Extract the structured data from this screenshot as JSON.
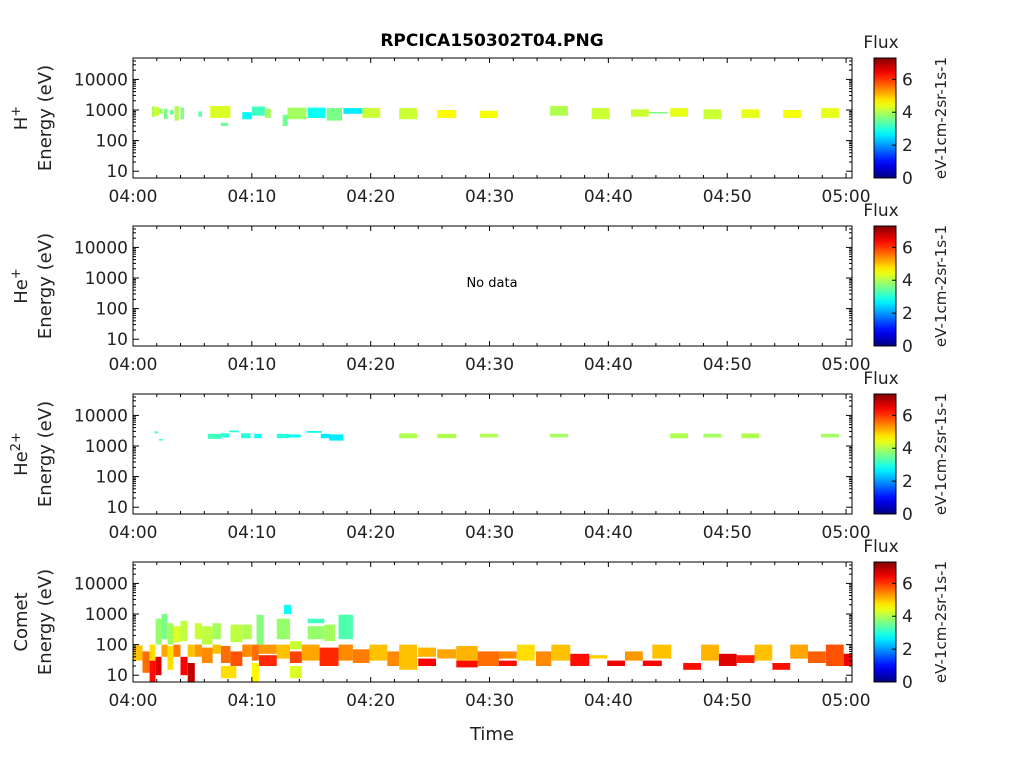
{
  "chart_data": {
    "type": "heatmap",
    "title": "RPCICA150302T04.PNG",
    "xlabel": "Time",
    "x_ticks": [
      "04:00",
      "04:10",
      "04:20",
      "04:30",
      "04:40",
      "04:50",
      "05:00"
    ],
    "x_range_minutes": [
      0,
      60.5
    ],
    "y_scale": "log",
    "y_ticks": [
      "10",
      "100",
      "1000",
      "10000"
    ],
    "y_range_eV": [
      6,
      50000
    ],
    "colorbar": {
      "label_top": "Flux",
      "label_side": "eV-1cm-2sr-1s-1",
      "ticks": [
        "0",
        "2",
        "4",
        "6"
      ],
      "range": [
        0,
        7.3
      ],
      "colormap": "jet"
    },
    "panels": [
      {
        "species": "H",
        "species_sup": "+",
        "ylabel": "Energy (eV)",
        "no_data": "",
        "cells": [
          {
            "t": 1.6,
            "dt": 0.25,
            "e1": 600,
            "e2": 1300,
            "v": 4.0
          },
          {
            "t": 1.9,
            "dt": 0.3,
            "e1": 650,
            "e2": 1250,
            "v": 4.2
          },
          {
            "t": 2.2,
            "dt": 0.3,
            "e1": 750,
            "e2": 1100,
            "v": 3.8
          },
          {
            "t": 2.6,
            "dt": 0.3,
            "e1": 500,
            "e2": 1100,
            "v": 3.6
          },
          {
            "t": 3.1,
            "dt": 0.3,
            "e1": 700,
            "e2": 1000,
            "v": 3.5
          },
          {
            "t": 3.5,
            "dt": 0.35,
            "e1": 450,
            "e2": 1350,
            "v": 4.0
          },
          {
            "t": 4.0,
            "dt": 0.3,
            "e1": 500,
            "e2": 1200,
            "v": 3.7
          },
          {
            "t": 5.5,
            "dt": 0.3,
            "e1": 600,
            "e2": 900,
            "v": 3.4
          },
          {
            "t": 6.5,
            "dt": 1.7,
            "e1": 550,
            "e2": 1350,
            "v": 4.3
          },
          {
            "t": 7.4,
            "dt": 0.6,
            "e1": 300,
            "e2": 380,
            "v": 3.5
          },
          {
            "t": 9.2,
            "dt": 0.8,
            "e1": 500,
            "e2": 850,
            "v": 2.7
          },
          {
            "t": 10.0,
            "dt": 1.1,
            "e1": 650,
            "e2": 1300,
            "v": 3.2
          },
          {
            "t": 11.1,
            "dt": 0.5,
            "e1": 550,
            "e2": 1100,
            "v": 3.9
          },
          {
            "t": 12.6,
            "dt": 0.4,
            "e1": 300,
            "e2": 700,
            "v": 3.5
          },
          {
            "t": 13.0,
            "dt": 1.6,
            "e1": 500,
            "e2": 1200,
            "v": 3.9
          },
          {
            "t": 14.7,
            "dt": 1.5,
            "e1": 550,
            "e2": 1200,
            "v": 2.8
          },
          {
            "t": 16.3,
            "dt": 1.3,
            "e1": 450,
            "e2": 1150,
            "v": 3.6
          },
          {
            "t": 17.7,
            "dt": 1.6,
            "e1": 750,
            "e2": 1150,
            "v": 2.6
          },
          {
            "t": 19.3,
            "dt": 1.5,
            "e1": 550,
            "e2": 1150,
            "v": 4.2
          },
          {
            "t": 22.4,
            "dt": 1.5,
            "e1": 500,
            "e2": 1150,
            "v": 4.2
          },
          {
            "t": 25.6,
            "dt": 1.6,
            "e1": 550,
            "e2": 1000,
            "v": 4.6
          },
          {
            "t": 29.2,
            "dt": 1.5,
            "e1": 550,
            "e2": 950,
            "v": 4.5
          },
          {
            "t": 35.1,
            "dt": 1.5,
            "e1": 650,
            "e2": 1350,
            "v": 4.0
          },
          {
            "t": 38.6,
            "dt": 1.5,
            "e1": 500,
            "e2": 1150,
            "v": 4.2
          },
          {
            "t": 41.9,
            "dt": 1.5,
            "e1": 600,
            "e2": 1050,
            "v": 4.2
          },
          {
            "t": 43.4,
            "dt": 1.6,
            "e1": 780,
            "e2": 860,
            "v": 3.6
          },
          {
            "t": 45.2,
            "dt": 1.5,
            "e1": 600,
            "e2": 1150,
            "v": 4.4
          },
          {
            "t": 48.0,
            "dt": 1.5,
            "e1": 500,
            "e2": 1050,
            "v": 4.2
          },
          {
            "t": 51.2,
            "dt": 1.5,
            "e1": 550,
            "e2": 1050,
            "v": 4.4
          },
          {
            "t": 54.7,
            "dt": 1.5,
            "e1": 550,
            "e2": 1000,
            "v": 4.5
          },
          {
            "t": 57.9,
            "dt": 1.5,
            "e1": 550,
            "e2": 1150,
            "v": 4.4
          }
        ]
      },
      {
        "species": "He",
        "species_sup": "+",
        "ylabel": "Energy (eV)",
        "no_data": "No data",
        "cells": []
      },
      {
        "species": "He",
        "species_sup": "2+",
        "ylabel": "Energy (eV)",
        "no_data": "",
        "cells": [
          {
            "t": 1.8,
            "dt": 0.3,
            "e1": 2600,
            "e2": 3000,
            "v": 3.2
          },
          {
            "t": 2.2,
            "dt": 0.3,
            "e1": 1500,
            "e2": 1700,
            "v": 3.2
          },
          {
            "t": 6.3,
            "dt": 1.1,
            "e1": 1700,
            "e2": 2500,
            "v": 3.2
          },
          {
            "t": 7.4,
            "dt": 0.7,
            "e1": 1900,
            "e2": 2600,
            "v": 3.0
          },
          {
            "t": 8.1,
            "dt": 0.8,
            "e1": 2800,
            "e2": 3200,
            "v": 3.0
          },
          {
            "t": 9.1,
            "dt": 0.8,
            "e1": 1800,
            "e2": 2600,
            "v": 3.0
          },
          {
            "t": 10.2,
            "dt": 0.6,
            "e1": 1800,
            "e2": 2500,
            "v": 2.8
          },
          {
            "t": 12.1,
            "dt": 1.0,
            "e1": 1800,
            "e2": 2500,
            "v": 3.0
          },
          {
            "t": 13.1,
            "dt": 1.0,
            "e1": 1900,
            "e2": 2400,
            "v": 2.8
          },
          {
            "t": 14.6,
            "dt": 1.3,
            "e1": 2700,
            "e2": 3100,
            "v": 2.8
          },
          {
            "t": 15.8,
            "dt": 0.8,
            "e1": 1800,
            "e2": 2500,
            "v": 2.6
          },
          {
            "t": 16.5,
            "dt": 1.2,
            "e1": 1500,
            "e2": 2400,
            "v": 2.6
          },
          {
            "t": 22.4,
            "dt": 1.5,
            "e1": 1800,
            "e2": 2600,
            "v": 4.0
          },
          {
            "t": 25.6,
            "dt": 1.6,
            "e1": 1800,
            "e2": 2500,
            "v": 4.0
          },
          {
            "t": 29.2,
            "dt": 1.5,
            "e1": 1900,
            "e2": 2500,
            "v": 4.0
          },
          {
            "t": 35.1,
            "dt": 1.5,
            "e1": 1900,
            "e2": 2500,
            "v": 3.9
          },
          {
            "t": 45.2,
            "dt": 1.5,
            "e1": 1800,
            "e2": 2600,
            "v": 4.0
          },
          {
            "t": 48.0,
            "dt": 1.5,
            "e1": 1900,
            "e2": 2500,
            "v": 3.9
          },
          {
            "t": 51.2,
            "dt": 1.5,
            "e1": 1800,
            "e2": 2600,
            "v": 4.0
          },
          {
            "t": 57.9,
            "dt": 1.5,
            "e1": 1900,
            "e2": 2500,
            "v": 3.9
          }
        ]
      },
      {
        "species": "Comet",
        "species_sup": "",
        "ylabel": "Energy (eV)",
        "no_data": "",
        "cells": [
          {
            "t": 0.0,
            "dt": 0.8,
            "e1": 30,
            "e2": 95,
            "v": 5.0
          },
          {
            "t": 0.8,
            "dt": 0.6,
            "e1": 12,
            "e2": 60,
            "v": 5.6
          },
          {
            "t": 1.4,
            "dt": 0.5,
            "e1": 6,
            "e2": 30,
            "v": 6.3
          },
          {
            "t": 1.4,
            "dt": 0.5,
            "e1": 30,
            "e2": 100,
            "v": 4.8
          },
          {
            "t": 1.9,
            "dt": 0.5,
            "e1": 10,
            "e2": 40,
            "v": 6.6
          },
          {
            "t": 1.9,
            "dt": 0.5,
            "e1": 100,
            "e2": 700,
            "v": 3.8
          },
          {
            "t": 2.4,
            "dt": 0.5,
            "e1": 40,
            "e2": 100,
            "v": 5.2
          },
          {
            "t": 2.4,
            "dt": 0.5,
            "e1": 150,
            "e2": 1000,
            "v": 3.6
          },
          {
            "t": 2.9,
            "dt": 0.5,
            "e1": 15,
            "e2": 90,
            "v": 4.8
          },
          {
            "t": 2.9,
            "dt": 0.5,
            "e1": 100,
            "e2": 500,
            "v": 3.9
          },
          {
            "t": 3.4,
            "dt": 0.6,
            "e1": 40,
            "e2": 100,
            "v": 5.5
          },
          {
            "t": 3.4,
            "dt": 0.6,
            "e1": 120,
            "e2": 400,
            "v": 4.3
          },
          {
            "t": 4.0,
            "dt": 0.6,
            "e1": 10,
            "e2": 40,
            "v": 6.4
          },
          {
            "t": 4.0,
            "dt": 0.6,
            "e1": 130,
            "e2": 600,
            "v": 4.1
          },
          {
            "t": 4.6,
            "dt": 0.6,
            "e1": 6,
            "e2": 25,
            "v": 6.8
          },
          {
            "t": 4.6,
            "dt": 0.6,
            "e1": 40,
            "e2": 100,
            "v": 5.0
          },
          {
            "t": 5.2,
            "dt": 0.6,
            "e1": 40,
            "e2": 100,
            "v": 5.3
          },
          {
            "t": 5.2,
            "dt": 0.6,
            "e1": 150,
            "e2": 500,
            "v": 4.2
          },
          {
            "t": 5.8,
            "dt": 0.9,
            "e1": 25,
            "e2": 80,
            "v": 5.4
          },
          {
            "t": 5.8,
            "dt": 0.9,
            "e1": 100,
            "e2": 400,
            "v": 4.1
          },
          {
            "t": 6.7,
            "dt": 0.7,
            "e1": 50,
            "e2": 100,
            "v": 5.0
          },
          {
            "t": 6.7,
            "dt": 0.7,
            "e1": 150,
            "e2": 500,
            "v": 3.9
          },
          {
            "t": 7.4,
            "dt": 1.3,
            "e1": 8,
            "e2": 20,
            "v": 4.8
          },
          {
            "t": 7.4,
            "dt": 0.8,
            "e1": 25,
            "e2": 90,
            "v": 5.6
          },
          {
            "t": 8.2,
            "dt": 1.0,
            "e1": 20,
            "e2": 60,
            "v": 5.8
          },
          {
            "t": 8.2,
            "dt": 1.0,
            "e1": 120,
            "e2": 450,
            "v": 4.1
          },
          {
            "t": 9.2,
            "dt": 0.8,
            "e1": 40,
            "e2": 100,
            "v": 5.4
          },
          {
            "t": 9.2,
            "dt": 0.8,
            "e1": 150,
            "e2": 450,
            "v": 4.0
          },
          {
            "t": 10.0,
            "dt": 0.6,
            "e1": 6,
            "e2": 25,
            "v": 4.6
          },
          {
            "t": 10.0,
            "dt": 0.6,
            "e1": 30,
            "e2": 100,
            "v": 5.6
          },
          {
            "t": 10.4,
            "dt": 0.6,
            "e1": 100,
            "e2": 950,
            "v": 3.7
          },
          {
            "t": 10.6,
            "dt": 1.5,
            "e1": 20,
            "e2": 45,
            "v": 6.1
          },
          {
            "t": 10.6,
            "dt": 1.5,
            "e1": 50,
            "e2": 100,
            "v": 5.3
          },
          {
            "t": 12.1,
            "dt": 1.1,
            "e1": 35,
            "e2": 100,
            "v": 5.0
          },
          {
            "t": 12.1,
            "dt": 1.1,
            "e1": 150,
            "e2": 700,
            "v": 3.8
          },
          {
            "t": 12.7,
            "dt": 0.6,
            "e1": 1000,
            "e2": 2000,
            "v": 2.8
          },
          {
            "t": 13.2,
            "dt": 1.0,
            "e1": 8,
            "e2": 20,
            "v": 4.3
          },
          {
            "t": 13.2,
            "dt": 1.0,
            "e1": 25,
            "e2": 60,
            "v": 5.9
          },
          {
            "t": 13.2,
            "dt": 1.0,
            "e1": 70,
            "e2": 130,
            "v": 4.2
          },
          {
            "t": 14.2,
            "dt": 1.5,
            "e1": 30,
            "e2": 100,
            "v": 5.2
          },
          {
            "t": 14.7,
            "dt": 1.4,
            "e1": 150,
            "e2": 400,
            "v": 3.8
          },
          {
            "t": 14.7,
            "dt": 1.4,
            "e1": 500,
            "e2": 700,
            "v": 3.2
          },
          {
            "t": 15.7,
            "dt": 1.6,
            "e1": 20,
            "e2": 80,
            "v": 6.1
          },
          {
            "t": 16.1,
            "dt": 0.9,
            "e1": 130,
            "e2": 450,
            "v": 3.9
          },
          {
            "t": 17.3,
            "dt": 1.2,
            "e1": 30,
            "e2": 100,
            "v": 5.4
          },
          {
            "t": 17.3,
            "dt": 1.2,
            "e1": 150,
            "e2": 950,
            "v": 3.3
          },
          {
            "t": 18.5,
            "dt": 1.4,
            "e1": 25,
            "e2": 70,
            "v": 5.5
          },
          {
            "t": 19.9,
            "dt": 1.5,
            "e1": 30,
            "e2": 100,
            "v": 5.0
          },
          {
            "t": 21.4,
            "dt": 1.0,
            "e1": 20,
            "e2": 60,
            "v": 5.4
          },
          {
            "t": 22.4,
            "dt": 1.5,
            "e1": 15,
            "e2": 100,
            "v": 5.0
          },
          {
            "t": 24.0,
            "dt": 1.5,
            "e1": 20,
            "e2": 35,
            "v": 6.4
          },
          {
            "t": 24.0,
            "dt": 1.5,
            "e1": 40,
            "e2": 80,
            "v": 5.1
          },
          {
            "t": 25.6,
            "dt": 1.6,
            "e1": 35,
            "e2": 70,
            "v": 5.2
          },
          {
            "t": 27.2,
            "dt": 1.8,
            "e1": 18,
            "e2": 30,
            "v": 6.3
          },
          {
            "t": 27.2,
            "dt": 1.8,
            "e1": 30,
            "e2": 90,
            "v": 5.1
          },
          {
            "t": 29.0,
            "dt": 1.8,
            "e1": 20,
            "e2": 60,
            "v": 5.6
          },
          {
            "t": 30.8,
            "dt": 1.5,
            "e1": 20,
            "e2": 30,
            "v": 6.3
          },
          {
            "t": 30.8,
            "dt": 1.5,
            "e1": 35,
            "e2": 60,
            "v": 5.4
          },
          {
            "t": 32.3,
            "dt": 1.5,
            "e1": 30,
            "e2": 100,
            "v": 4.8
          },
          {
            "t": 33.9,
            "dt": 1.3,
            "e1": 20,
            "e2": 60,
            "v": 5.4
          },
          {
            "t": 35.2,
            "dt": 1.6,
            "e1": 30,
            "e2": 100,
            "v": 5.0
          },
          {
            "t": 36.8,
            "dt": 1.6,
            "e1": 20,
            "e2": 50,
            "v": 6.3
          },
          {
            "t": 38.4,
            "dt": 1.5,
            "e1": 35,
            "e2": 45,
            "v": 4.9
          },
          {
            "t": 39.9,
            "dt": 1.5,
            "e1": 20,
            "e2": 30,
            "v": 6.5
          },
          {
            "t": 41.4,
            "dt": 1.5,
            "e1": 30,
            "e2": 60,
            "v": 5.3
          },
          {
            "t": 42.9,
            "dt": 1.6,
            "e1": 20,
            "e2": 30,
            "v": 6.4
          },
          {
            "t": 43.7,
            "dt": 1.6,
            "e1": 35,
            "e2": 100,
            "v": 5.0
          },
          {
            "t": 46.3,
            "dt": 1.5,
            "e1": 15,
            "e2": 25,
            "v": 6.3
          },
          {
            "t": 47.8,
            "dt": 1.5,
            "e1": 30,
            "e2": 100,
            "v": 5.1
          },
          {
            "t": 49.3,
            "dt": 1.5,
            "e1": 20,
            "e2": 50,
            "v": 6.6
          },
          {
            "t": 50.8,
            "dt": 1.5,
            "e1": 25,
            "e2": 45,
            "v": 6.2
          },
          {
            "t": 52.3,
            "dt": 1.5,
            "e1": 30,
            "e2": 100,
            "v": 5.0
          },
          {
            "t": 53.8,
            "dt": 1.5,
            "e1": 15,
            "e2": 25,
            "v": 6.3
          },
          {
            "t": 55.3,
            "dt": 1.5,
            "e1": 35,
            "e2": 100,
            "v": 5.2
          },
          {
            "t": 56.8,
            "dt": 1.5,
            "e1": 25,
            "e2": 60,
            "v": 5.7
          },
          {
            "t": 58.3,
            "dt": 1.5,
            "e1": 20,
            "e2": 100,
            "v": 5.8
          },
          {
            "t": 59.8,
            "dt": 0.7,
            "e1": 20,
            "e2": 50,
            "v": 6.5
          }
        ]
      }
    ]
  }
}
